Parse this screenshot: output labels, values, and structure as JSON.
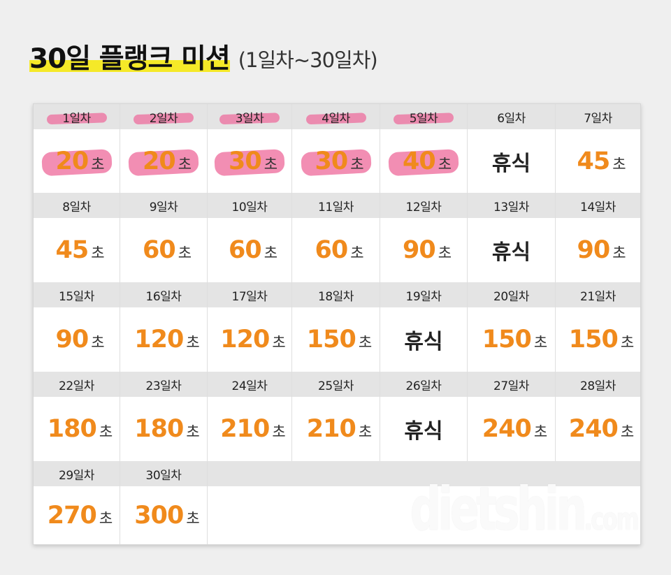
{
  "title": {
    "main": "30일 플랭크 미션",
    "sub": "(1일차~30일차)"
  },
  "unit": "초",
  "colors": {
    "accent": "#f08a1c",
    "title_highlight": "#f5e928",
    "marker": "#ee6e9e"
  },
  "days": [
    {
      "label": "1일차",
      "value": "20",
      "rest": false,
      "marked": true
    },
    {
      "label": "2일차",
      "value": "20",
      "rest": false,
      "marked": true
    },
    {
      "label": "3일차",
      "value": "30",
      "rest": false,
      "marked": true
    },
    {
      "label": "4일차",
      "value": "30",
      "rest": false,
      "marked": true
    },
    {
      "label": "5일차",
      "value": "40",
      "rest": false,
      "marked": true
    },
    {
      "label": "6일차",
      "value": "휴식",
      "rest": true,
      "marked": false
    },
    {
      "label": "7일차",
      "value": "45",
      "rest": false,
      "marked": false
    },
    {
      "label": "8일차",
      "value": "45",
      "rest": false,
      "marked": false
    },
    {
      "label": "9일차",
      "value": "60",
      "rest": false,
      "marked": false
    },
    {
      "label": "10일차",
      "value": "60",
      "rest": false,
      "marked": false
    },
    {
      "label": "11일차",
      "value": "60",
      "rest": false,
      "marked": false
    },
    {
      "label": "12일차",
      "value": "90",
      "rest": false,
      "marked": false
    },
    {
      "label": "13일차",
      "value": "휴식",
      "rest": true,
      "marked": false
    },
    {
      "label": "14일차",
      "value": "90",
      "rest": false,
      "marked": false
    },
    {
      "label": "15일차",
      "value": "90",
      "rest": false,
      "marked": false
    },
    {
      "label": "16일차",
      "value": "120",
      "rest": false,
      "marked": false
    },
    {
      "label": "17일차",
      "value": "120",
      "rest": false,
      "marked": false
    },
    {
      "label": "18일차",
      "value": "150",
      "rest": false,
      "marked": false
    },
    {
      "label": "19일차",
      "value": "휴식",
      "rest": true,
      "marked": false
    },
    {
      "label": "20일차",
      "value": "150",
      "rest": false,
      "marked": false
    },
    {
      "label": "21일차",
      "value": "150",
      "rest": false,
      "marked": false
    },
    {
      "label": "22일차",
      "value": "180",
      "rest": false,
      "marked": false
    },
    {
      "label": "23일차",
      "value": "180",
      "rest": false,
      "marked": false
    },
    {
      "label": "24일차",
      "value": "210",
      "rest": false,
      "marked": false
    },
    {
      "label": "25일차",
      "value": "210",
      "rest": false,
      "marked": false
    },
    {
      "label": "26일차",
      "value": "휴식",
      "rest": true,
      "marked": false
    },
    {
      "label": "27일차",
      "value": "240",
      "rest": false,
      "marked": false
    },
    {
      "label": "28일차",
      "value": "240",
      "rest": false,
      "marked": false
    },
    {
      "label": "29일차",
      "value": "270",
      "rest": false,
      "marked": false
    },
    {
      "label": "30일차",
      "value": "300",
      "rest": false,
      "marked": false
    }
  ],
  "watermark": {
    "brand": "dietshin",
    "suffix": ".com"
  }
}
